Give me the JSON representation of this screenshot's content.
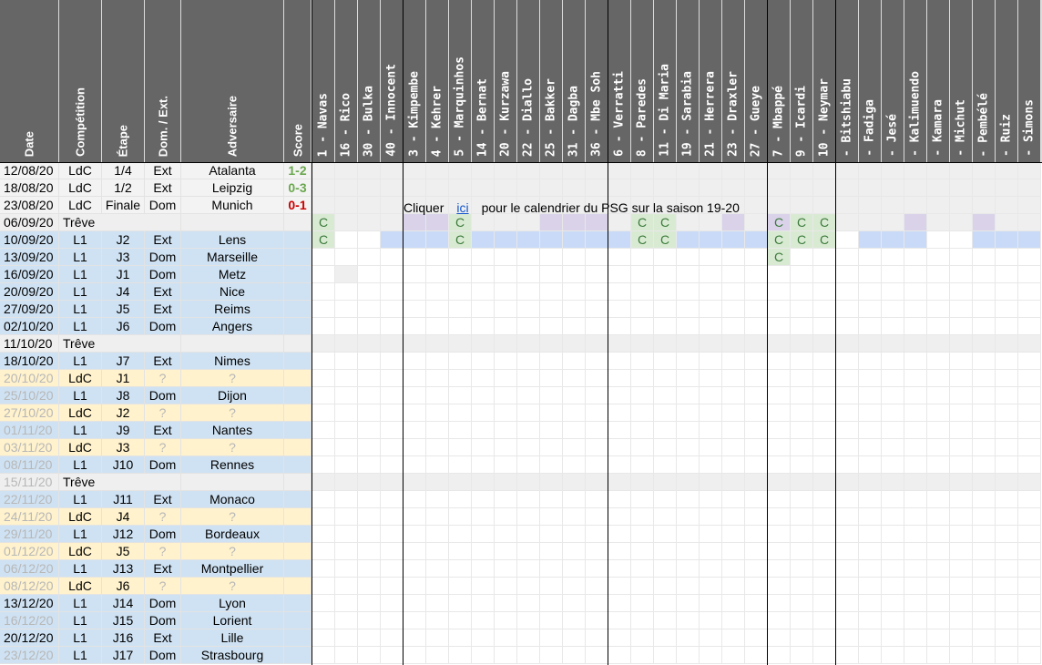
{
  "columns": {
    "info": [
      "Date",
      "Compétition",
      "Étape",
      "Dom. / Ext.",
      "Adversaire",
      "Score"
    ],
    "players": [
      "1 - Navas",
      "16 - Rico",
      "30 - Bulka",
      "40 - Innocent",
      "3 - Kimpembe",
      "4 - Kehrer",
      "5 - Marquinhos",
      "14 - Bernat",
      "20 - Kurzawa",
      "22 - Diallo",
      "25 - Bakker",
      "31 - Dagba",
      "36 - Mbe Soh",
      "6 - Verratti",
      "8 - Paredes",
      "11 - Di Maria",
      "19 - Sarabia",
      "21 - Herrera",
      "23 - Draxler",
      "27 - Gueye",
      "7 - Mbappé",
      "9 - Icardi",
      "10 - Neymar",
      "- Bitshiabu",
      "- Fadiga",
      "- Jesé",
      "- Kalimuendo",
      "- Kamara",
      "- Michut",
      "- Pembélé",
      "- Ruiz",
      "- Simons"
    ]
  },
  "colors": {
    "header_bg": "#666666",
    "l1": "#cfe2f3",
    "ldc": "#fff2cc",
    "treve": "#efefef",
    "past": "#f3f3f3",
    "played_blue": "#c9daf8",
    "played_purple": "#d9d2e9",
    "captain_green": "#d9ead3",
    "win": "#6aa84f",
    "loss": "#cc0000",
    "future_date": "#b7b7b7"
  },
  "rows": [
    {
      "date": "12/08/20",
      "comp": "LdC",
      "stage": "1/4",
      "venue": "Ext",
      "opp": "Atalanta",
      "score": "1-2",
      "res": "win",
      "type": "past"
    },
    {
      "date": "18/08/20",
      "comp": "LdC",
      "stage": "1/2",
      "venue": "Ext",
      "opp": "Leipzig",
      "score": "0-3",
      "res": "win",
      "type": "past"
    },
    {
      "date": "23/08/20",
      "comp": "LdC",
      "stage": "Finale",
      "venue": "Dom",
      "opp": "Munich",
      "score": "0-1",
      "res": "loss",
      "type": "past"
    },
    {
      "date": "06/09/20",
      "comp": "Trêve",
      "stage": "",
      "venue": "",
      "opp": "",
      "score": "",
      "type": "treve"
    },
    {
      "date": "10/09/20",
      "comp": "L1",
      "stage": "J2",
      "venue": "Ext",
      "opp": "Lens",
      "score": "",
      "type": "l1"
    },
    {
      "date": "13/09/20",
      "comp": "L1",
      "stage": "J3",
      "venue": "Dom",
      "opp": "Marseille",
      "score": "",
      "type": "l1"
    },
    {
      "date": "16/09/20",
      "comp": "L1",
      "stage": "J1",
      "venue": "Dom",
      "opp": "Metz",
      "score": "",
      "type": "l1"
    },
    {
      "date": "20/09/20",
      "comp": "L1",
      "stage": "J4",
      "venue": "Ext",
      "opp": "Nice",
      "score": "",
      "type": "l1"
    },
    {
      "date": "27/09/20",
      "comp": "L1",
      "stage": "J5",
      "venue": "Ext",
      "opp": "Reims",
      "score": "",
      "type": "l1"
    },
    {
      "date": "02/10/20",
      "comp": "L1",
      "stage": "J6",
      "venue": "Dom",
      "opp": "Angers",
      "score": "",
      "type": "l1"
    },
    {
      "date": "11/10/20",
      "comp": "Trêve",
      "stage": "",
      "venue": "",
      "opp": "",
      "score": "",
      "type": "treve"
    },
    {
      "date": "18/10/20",
      "comp": "L1",
      "stage": "J7",
      "venue": "Ext",
      "opp": "Nimes",
      "score": "",
      "type": "l1"
    },
    {
      "date": "20/10/20",
      "comp": "LdC",
      "stage": "J1",
      "venue": "?",
      "opp": "?",
      "score": "",
      "type": "ldc",
      "future": true
    },
    {
      "date": "25/10/20",
      "comp": "L1",
      "stage": "J8",
      "venue": "Dom",
      "opp": "Dijon",
      "score": "",
      "type": "l1",
      "future": true
    },
    {
      "date": "27/10/20",
      "comp": "LdC",
      "stage": "J2",
      "venue": "?",
      "opp": "?",
      "score": "",
      "type": "ldc",
      "future": true
    },
    {
      "date": "01/11/20",
      "comp": "L1",
      "stage": "J9",
      "venue": "Ext",
      "opp": "Nantes",
      "score": "",
      "type": "l1",
      "future": true
    },
    {
      "date": "03/11/20",
      "comp": "LdC",
      "stage": "J3",
      "venue": "?",
      "opp": "?",
      "score": "",
      "type": "ldc",
      "future": true
    },
    {
      "date": "08/11/20",
      "comp": "L1",
      "stage": "J10",
      "venue": "Dom",
      "opp": "Rennes",
      "score": "",
      "type": "l1",
      "future": true
    },
    {
      "date": "15/11/20",
      "comp": "Trêve",
      "stage": "",
      "venue": "",
      "opp": "",
      "score": "",
      "type": "treve",
      "future": true
    },
    {
      "date": "22/11/20",
      "comp": "L1",
      "stage": "J11",
      "venue": "Ext",
      "opp": "Monaco",
      "score": "",
      "type": "l1",
      "future": true
    },
    {
      "date": "24/11/20",
      "comp": "LdC",
      "stage": "J4",
      "venue": "?",
      "opp": "?",
      "score": "",
      "type": "ldc",
      "future": true
    },
    {
      "date": "29/11/20",
      "comp": "L1",
      "stage": "J12",
      "venue": "Dom",
      "opp": "Bordeaux",
      "score": "",
      "type": "l1",
      "future": true
    },
    {
      "date": "01/12/20",
      "comp": "LdC",
      "stage": "J5",
      "venue": "?",
      "opp": "?",
      "score": "",
      "type": "ldc",
      "future": true
    },
    {
      "date": "06/12/20",
      "comp": "L1",
      "stage": "J13",
      "venue": "Ext",
      "opp": "Montpellier",
      "score": "",
      "type": "l1",
      "future": true
    },
    {
      "date": "08/12/20",
      "comp": "LdC",
      "stage": "J6",
      "venue": "?",
      "opp": "?",
      "score": "",
      "type": "ldc",
      "future": true
    },
    {
      "date": "13/12/20",
      "comp": "L1",
      "stage": "J14",
      "venue": "Dom",
      "opp": "Lyon",
      "score": "",
      "type": "l1"
    },
    {
      "date": "16/12/20",
      "comp": "L1",
      "stage": "J15",
      "venue": "Dom",
      "opp": "Lorient",
      "score": "",
      "type": "l1",
      "future": true
    },
    {
      "date": "20/12/20",
      "comp": "L1",
      "stage": "J16",
      "venue": "Ext",
      "opp": "Lille",
      "score": "",
      "type": "l1"
    },
    {
      "date": "23/12/20",
      "comp": "L1",
      "stage": "J17",
      "venue": "Dom",
      "opp": "Strasbourg",
      "score": "",
      "type": "l1",
      "future": true
    }
  ],
  "player_marks": {
    "3": {
      "0": "C",
      "6": "C",
      "14": "C",
      "15": "C",
      "20": "C",
      "21": "C",
      "22": "C"
    },
    "4": {
      "0": "C",
      "6": "C",
      "14": "C",
      "15": "C",
      "20": "C",
      "21": "C",
      "22": "C"
    },
    "5": {
      "20": "C"
    }
  },
  "note": {
    "before": "Cliquer",
    "link": "ici",
    "after": "pour le calendrier du PSG sur la saison 19-20"
  }
}
